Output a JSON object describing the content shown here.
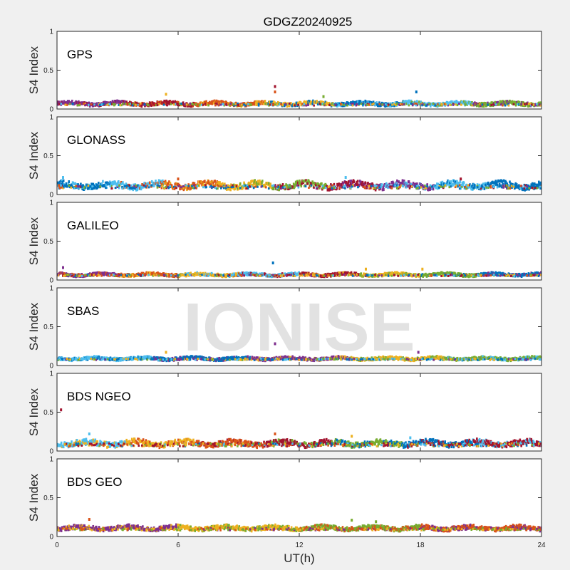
{
  "chart_data": {
    "type": "scatter",
    "title": "GDGZ20240925",
    "xlabel": "UT(h)",
    "xlim": [
      0,
      24
    ],
    "xticks": [
      0,
      6,
      12,
      18,
      24
    ],
    "watermark": "IONISE",
    "series_colors": [
      "#0072bd",
      "#d95319",
      "#edb120",
      "#7e2f8e",
      "#77ac30",
      "#4dbeee",
      "#a2142f"
    ],
    "panels": [
      {
        "label": "GPS",
        "ylabel": "S4 Index",
        "ylim": [
          0,
          1
        ],
        "yticks": [
          0,
          0.5,
          1
        ],
        "baseline": 0.07,
        "spread": 0.025,
        "spikes": [
          {
            "x": 5.4,
            "y": 0.19
          },
          {
            "x": 10.8,
            "y": 0.29
          },
          {
            "x": 10.8,
            "y": 0.22
          },
          {
            "x": 17.8,
            "y": 0.22
          },
          {
            "x": 13.2,
            "y": 0.16
          }
        ],
        "color_order": [
          3,
          6,
          1,
          2,
          0,
          5,
          4
        ]
      },
      {
        "label": "GLONASS",
        "ylabel": "S4 Index",
        "ylim": [
          0,
          1
        ],
        "yticks": [
          0,
          0.5,
          1
        ],
        "baseline": 0.12,
        "spread": 0.045,
        "spikes": [
          {
            "x": 0.3,
            "y": 0.22
          },
          {
            "x": 6.0,
            "y": 0.2
          },
          {
            "x": 14.3,
            "y": 0.22
          },
          {
            "x": 20.0,
            "y": 0.2
          }
        ],
        "color_order": [
          0,
          5,
          1,
          2,
          4,
          6,
          3,
          5,
          0
        ]
      },
      {
        "label": "GALILEO",
        "ylabel": "S4 Index",
        "ylim": [
          0,
          1
        ],
        "yticks": [
          0,
          0.5,
          1
        ],
        "baseline": 0.07,
        "spread": 0.02,
        "spikes": [
          {
            "x": 0.3,
            "y": 0.16
          },
          {
            "x": 10.7,
            "y": 0.22
          },
          {
            "x": 15.3,
            "y": 0.14
          },
          {
            "x": 18.1,
            "y": 0.14
          }
        ],
        "color_order": [
          3,
          1,
          2,
          5,
          6,
          2,
          4,
          0
        ]
      },
      {
        "label": "SBAS",
        "ylabel": "S4 Index",
        "ylim": [
          0,
          1
        ],
        "yticks": [
          0,
          0.5,
          1
        ],
        "baseline": 0.09,
        "spread": 0.02,
        "spikes": [
          {
            "x": 5.4,
            "y": 0.17
          },
          {
            "x": 10.8,
            "y": 0.28
          },
          {
            "x": 17.9,
            "y": 0.17
          }
        ],
        "color_order": [
          5,
          0,
          3,
          2,
          4
        ]
      },
      {
        "label": "BDS NGEO",
        "ylabel": "S4 Index",
        "ylim": [
          0,
          1
        ],
        "yticks": [
          0,
          0.5,
          1
        ],
        "baseline": 0.1,
        "spread": 0.04,
        "spikes": [
          {
            "x": 0.2,
            "y": 0.53
          },
          {
            "x": 1.6,
            "y": 0.22
          },
          {
            "x": 10.8,
            "y": 0.22
          },
          {
            "x": 14.6,
            "y": 0.19
          },
          {
            "x": 17.5,
            "y": 0.17
          }
        ],
        "color_order": [
          5,
          2,
          1,
          6,
          4,
          0,
          6
        ]
      },
      {
        "label": "BDS GEO",
        "ylabel": "S4 Index",
        "ylim": [
          0,
          1
        ],
        "yticks": [
          0,
          0.5,
          1
        ],
        "baseline": 0.11,
        "spread": 0.03,
        "spikes": [
          {
            "x": 1.6,
            "y": 0.22
          },
          {
            "x": 14.6,
            "y": 0.21
          },
          {
            "x": 15.8,
            "y": 0.19
          }
        ],
        "color_order": [
          3,
          2,
          4,
          1
        ]
      }
    ]
  }
}
